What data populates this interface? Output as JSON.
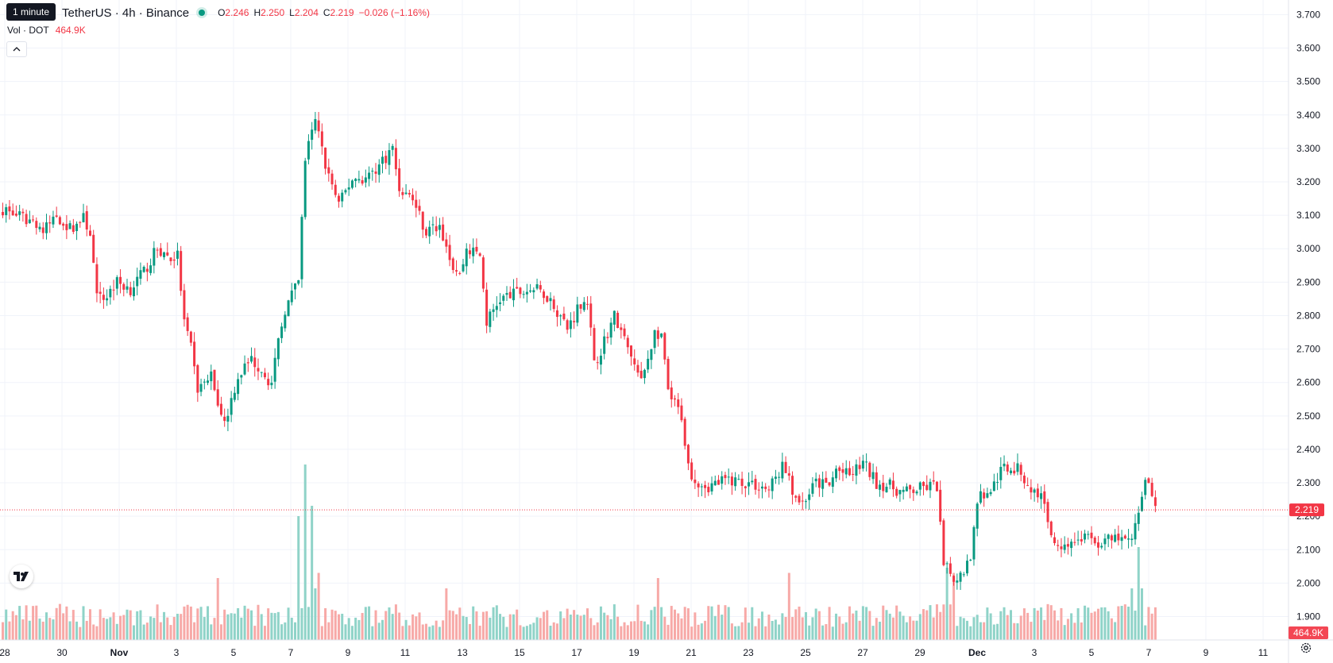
{
  "header": {
    "tooltip": "1 minute",
    "symbol": "TetherUS · 4h · Binance",
    "o_label": "O",
    "o_value": "2.246",
    "h_label": "H",
    "h_value": "2.250",
    "l_label": "L",
    "l_value": "2.204",
    "c_label": "C",
    "c_value": "2.219",
    "change": "−0.026 (−1.16%)",
    "vol_label": "Vol · DOT",
    "vol_value": "464.9K",
    "collapse_icon": "chevron-up-icon"
  },
  "colors": {
    "up": "#089981",
    "down": "#f23645",
    "up_vol": "#8fd3c8",
    "down_vol": "#f7a9a7",
    "grid": "#f0f3fa",
    "text": "#131722"
  },
  "icons": {
    "logo": "tradingview-logo-icon",
    "settings": "gear-icon"
  },
  "chart_data": {
    "type": "candlestick",
    "last_price_label": "2.219",
    "last_volume_label": "464.9K",
    "ylim": [
      1.83,
      3.72
    ],
    "y_ticks": [
      "1.900",
      "2.000",
      "2.100",
      "2.200",
      "2.300",
      "2.400",
      "2.500",
      "2.600",
      "2.700",
      "2.800",
      "2.900",
      "3.000",
      "3.100",
      "3.200",
      "3.300",
      "3.400",
      "3.500",
      "3.600",
      "3.700"
    ],
    "x_ticks": [
      "28",
      "30",
      "Nov",
      "3",
      "5",
      "7",
      "9",
      "11",
      "13",
      "15",
      "17",
      "19",
      "21",
      "23",
      "25",
      "27",
      "29",
      "Dec",
      "3",
      "5",
      "7",
      "9",
      "11"
    ],
    "anchors": [
      [
        0,
        3.12
      ],
      [
        6,
        3.09
      ],
      [
        10,
        3.08
      ],
      [
        12,
        3.05
      ],
      [
        16,
        3.1
      ],
      [
        20,
        3.06
      ],
      [
        24,
        3.09
      ],
      [
        26,
        3.05
      ],
      [
        28,
        2.85
      ],
      [
        30,
        2.85
      ],
      [
        34,
        2.9
      ],
      [
        38,
        2.88
      ],
      [
        42,
        2.93
      ],
      [
        46,
        3.0
      ],
      [
        50,
        2.97
      ],
      [
        52,
        2.98
      ],
      [
        54,
        2.78
      ],
      [
        56,
        2.7
      ],
      [
        58,
        2.58
      ],
      [
        62,
        2.62
      ],
      [
        66,
        2.48
      ],
      [
        70,
        2.62
      ],
      [
        74,
        2.67
      ],
      [
        78,
        2.63
      ],
      [
        80,
        2.59
      ],
      [
        82,
        2.72
      ],
      [
        84,
        2.82
      ],
      [
        88,
        2.9
      ],
      [
        90,
        3.27
      ],
      [
        93,
        3.38
      ],
      [
        96,
        3.25
      ],
      [
        100,
        3.13
      ],
      [
        104,
        3.21
      ],
      [
        108,
        3.21
      ],
      [
        112,
        3.25
      ],
      [
        116,
        3.3
      ],
      [
        118,
        3.18
      ],
      [
        122,
        3.15
      ],
      [
        126,
        3.05
      ],
      [
        130,
        3.07
      ],
      [
        134,
        2.95
      ],
      [
        136,
        2.92
      ],
      [
        138,
        3.0
      ],
      [
        142,
        2.98
      ],
      [
        144,
        2.78
      ],
      [
        148,
        2.85
      ],
      [
        154,
        2.87
      ],
      [
        158,
        2.88
      ],
      [
        162,
        2.86
      ],
      [
        166,
        2.8
      ],
      [
        168,
        2.76
      ],
      [
        172,
        2.84
      ],
      [
        174,
        2.85
      ],
      [
        176,
        2.65
      ],
      [
        178,
        2.7
      ],
      [
        182,
        2.8
      ],
      [
        186,
        2.7
      ],
      [
        190,
        2.6
      ],
      [
        194,
        2.75
      ],
      [
        196,
        2.74
      ],
      [
        198,
        2.57
      ],
      [
        202,
        2.5
      ],
      [
        204,
        2.35
      ],
      [
        206,
        2.31
      ],
      [
        210,
        2.29
      ],
      [
        216,
        2.31
      ],
      [
        222,
        2.3
      ],
      [
        228,
        2.28
      ],
      [
        232,
        2.35
      ],
      [
        236,
        2.26
      ],
      [
        238,
        2.24
      ],
      [
        242,
        2.3
      ],
      [
        246,
        2.29
      ],
      [
        248,
        2.34
      ],
      [
        252,
        2.32
      ],
      [
        256,
        2.36
      ],
      [
        260,
        2.3
      ],
      [
        264,
        2.29
      ],
      [
        268,
        2.27
      ],
      [
        272,
        2.28
      ],
      [
        276,
        2.29
      ],
      [
        278,
        2.29
      ],
      [
        280,
        2.05
      ],
      [
        282,
        2.03
      ],
      [
        284,
        2.0
      ],
      [
        288,
        2.08
      ],
      [
        290,
        2.25
      ],
      [
        294,
        2.28
      ],
      [
        298,
        2.35
      ],
      [
        302,
        2.34
      ],
      [
        306,
        2.28
      ],
      [
        310,
        2.25
      ],
      [
        312,
        2.13
      ],
      [
        314,
        2.12
      ],
      [
        318,
        2.12
      ],
      [
        322,
        2.14
      ],
      [
        326,
        2.12
      ],
      [
        330,
        2.13
      ],
      [
        334,
        2.13
      ],
      [
        336,
        2.12
      ],
      [
        338,
        2.21
      ],
      [
        340,
        2.31
      ],
      [
        342,
        2.28
      ],
      [
        343,
        2.23
      ]
    ],
    "volume_spikes": [
      [
        64,
        "1.2"
      ],
      [
        88,
        "2.4"
      ],
      [
        90,
        "3.4"
      ],
      [
        92,
        "2.6"
      ],
      [
        93,
        "1.0"
      ],
      [
        94,
        "1.3"
      ],
      [
        132,
        "1.0"
      ],
      [
        195,
        "1.2"
      ],
      [
        234,
        "1.3"
      ],
      [
        281,
        "1.4"
      ],
      [
        283,
        "1.3"
      ],
      [
        336,
        "1.0"
      ],
      [
        338,
        "1.8"
      ],
      [
        339,
        "1.0"
      ]
    ]
  }
}
